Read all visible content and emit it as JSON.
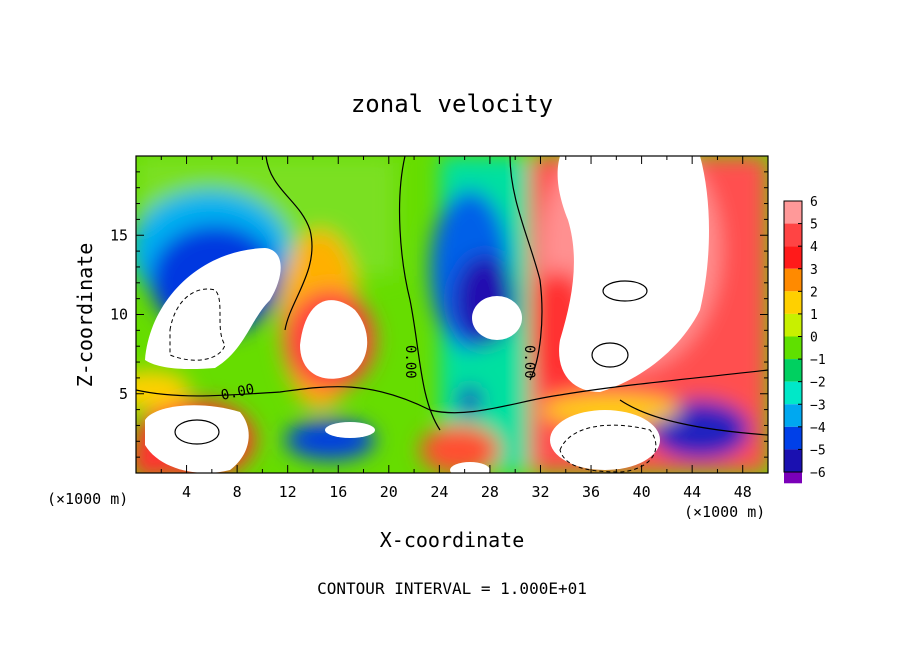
{
  "chart_data": {
    "type": "heatmap",
    "title": "zonal velocity",
    "xlabel": "X-coordinate",
    "ylabel": "Z-coordinate",
    "x_unit_left": "(×1000 m)",
    "x_unit_right": "(×1000 m)",
    "footer": "CONTOUR INTERVAL = 1.000E+01",
    "xlim": [
      0,
      50
    ],
    "ylim": [
      0,
      20
    ],
    "x_ticks": [
      "4",
      "8",
      "12",
      "16",
      "20",
      "24",
      "28",
      "32",
      "36",
      "40",
      "44",
      "48"
    ],
    "y_ticks": [
      "5",
      "10",
      "15"
    ],
    "colorbar": {
      "labels": [
        "6",
        "5",
        "4",
        "3",
        "2",
        "1",
        "0",
        "−1",
        "−2",
        "−3",
        "−4",
        "−5",
        "−6"
      ],
      "colors": [
        "#ff9999",
        "#ff4444",
        "#ff1a1a",
        "#ff8a00",
        "#ffd000",
        "#c8f000",
        "#5fe000",
        "#00d060",
        "#00e8c8",
        "#00a8f0",
        "#0040e8",
        "#1a10b0",
        "#7a00b8"
      ]
    },
    "contour_labels": [
      "0.00",
      "0.00",
      "0.00"
    ]
  }
}
